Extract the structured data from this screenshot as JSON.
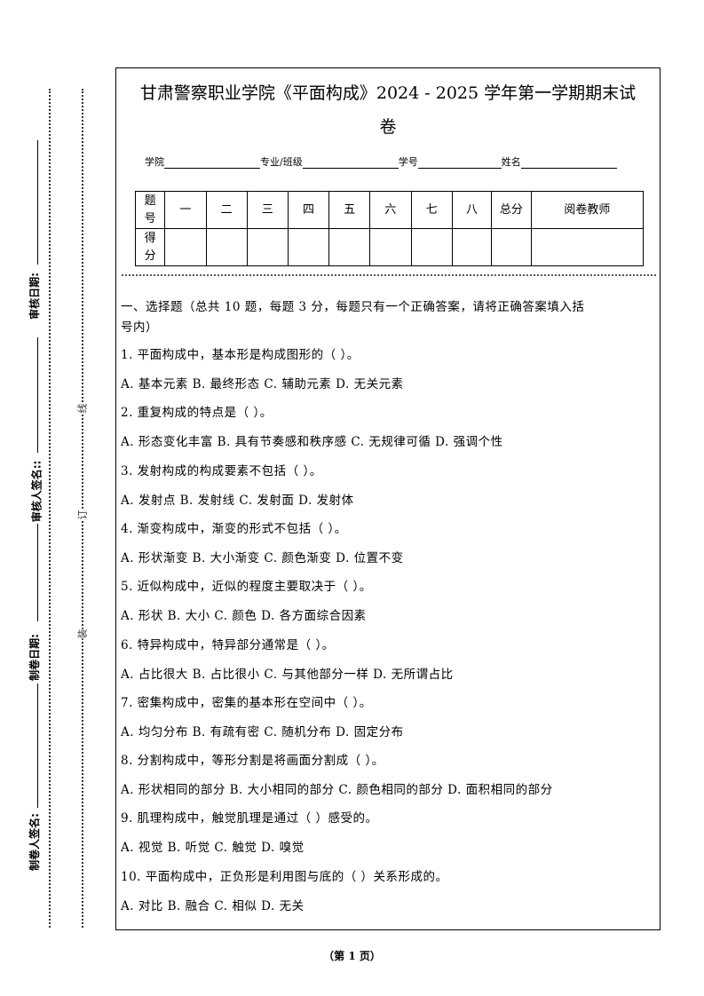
{
  "title_line1": "甘肃警察职业学院《平面构成》2024 - 2025 学年第一学期期末试",
  "title_line2": "卷",
  "info": {
    "college": "学院",
    "major": "专业/班级",
    "student_id": "学号",
    "name": "姓名"
  },
  "score_table": {
    "header": [
      "题号",
      "一",
      "二",
      "三",
      "四",
      "五",
      "六",
      "七",
      "八",
      "总分",
      "阅卷教师"
    ],
    "row_label": "得分"
  },
  "section1": {
    "line1": "一、选择题（总共 10 题，每题 3 分，每题只有一个正确答案，请将正确答案填入括",
    "line2": "号内）"
  },
  "questions": [
    {
      "q": "1. 平面构成中，基本形是构成图形的（  ）。",
      "a": "A. 基本元素  B. 最终形态  C. 辅助元素  D. 无关元素"
    },
    {
      "q": "2. 重复构成的特点是（  ）。",
      "a": "A. 形态变化丰富  B. 具有节奏感和秩序感  C. 无规律可循  D. 强调个性"
    },
    {
      "q": "3. 发射构成的构成要素不包括（  ）。",
      "a": "A. 发射点  B. 发射线  C. 发射面  D. 发射体"
    },
    {
      "q": "4. 渐变构成中，渐变的形式不包括（  ）。",
      "a": "A. 形状渐变  B. 大小渐变  C. 颜色渐变  D. 位置不变"
    },
    {
      "q": "5. 近似构成中，近似的程度主要取决于（  ）。",
      "a": "A. 形状  B. 大小  C. 颜色  D. 各方面综合因素"
    },
    {
      "q": "6. 特异构成中，特异部分通常是（  ）。",
      "a": "A. 占比很大  B. 占比很小  C. 与其他部分一样  D. 无所谓占比"
    },
    {
      "q": "7. 密集构成中，密集的基本形在空间中（  ）。",
      "a": "A. 均匀分布  B. 有疏有密  C. 随机分布  D. 固定分布"
    },
    {
      "q": "8. 分割构成中，等形分割是将画面分割成（  ）。",
      "a": "A. 形状相同的部分  B. 大小相同的部分  C. 颜色相同的部分  D. 面积相同的部分"
    },
    {
      "q": "9. 肌理构成中，触觉肌理是通过（  ）感受的。",
      "a": "A. 视觉  B. 听觉  C. 触觉  D. 嗅觉"
    },
    {
      "q": "10. 平面构成中，正负形是利用图与底的（  ）关系形成的。",
      "a": "A. 对比  B. 融合  C. 相似  D. 无关"
    }
  ],
  "margin": {
    "maker_sign": "制卷人签名:",
    "maker_date": "制卷日期:",
    "reviewer_sign": "审核人签名::",
    "review_date": "审核日期:",
    "bind_zhuang": "装",
    "bind_ding": "订",
    "bind_xian": "线"
  },
  "footer": "（第 1 页）"
}
